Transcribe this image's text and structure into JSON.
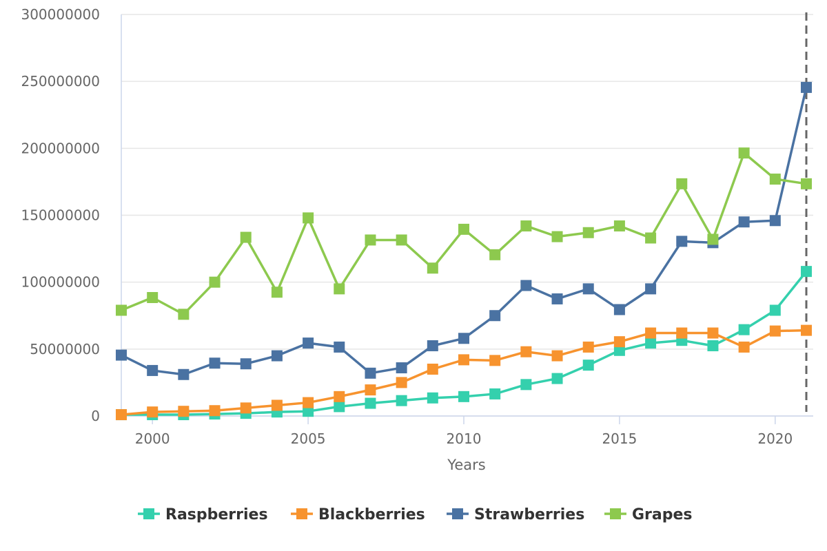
{
  "chart_data": {
    "type": "line",
    "title": "",
    "xlabel": "Years",
    "ylabel": "",
    "x": [
      1999,
      2000,
      2001,
      2002,
      2003,
      2004,
      2005,
      2006,
      2007,
      2008,
      2009,
      2010,
      2011,
      2012,
      2013,
      2014,
      2015,
      2016,
      2017,
      2018,
      2019,
      2020,
      2021
    ],
    "xlim": [
      1999,
      2021
    ],
    "ylim": [
      0,
      300000000
    ],
    "x_ticks": [
      2000,
      2005,
      2010,
      2015,
      2020
    ],
    "x_tick_labels": [
      "2000",
      "2005",
      "2010",
      "2015",
      "2020"
    ],
    "y_ticks": [
      0,
      50000000,
      100000000,
      150000000,
      200000000,
      250000000,
      300000000
    ],
    "y_tick_labels": [
      "0",
      "50000000",
      "100000000",
      "150000000",
      "200000000",
      "250000000",
      "300000000"
    ],
    "grid": true,
    "reference_line": {
      "x": 2021,
      "style": "dashed",
      "color": "#666666"
    },
    "legend_position": "bottom-center",
    "series": [
      {
        "name": "Raspberries",
        "color": "#34d0ad",
        "values": [
          1000000,
          1000000,
          1000000,
          1500000,
          2000000,
          3000000,
          3500000,
          7000000,
          9500000,
          11500000,
          13500000,
          14500000,
          16500000,
          23500000,
          28000000,
          38000000,
          49000000,
          54500000,
          56500000,
          52500000,
          64500000,
          79000000,
          108000000
        ]
      },
      {
        "name": "Blackberries",
        "color": "#f7932e",
        "values": [
          1000000,
          3000000,
          3500000,
          4000000,
          6000000,
          8000000,
          10000000,
          14500000,
          19500000,
          25000000,
          35000000,
          42000000,
          41500000,
          48000000,
          45000000,
          51500000,
          55500000,
          62000000,
          62000000,
          62000000,
          51500000,
          63500000,
          64000000
        ]
      },
      {
        "name": "Strawberries",
        "color": "#4a72a2",
        "values": [
          45500000,
          34000000,
          31000000,
          39500000,
          39000000,
          45000000,
          54500000,
          51500000,
          32000000,
          36000000,
          52500000,
          58000000,
          75000000,
          97500000,
          87500000,
          95000000,
          79500000,
          95000000,
          130500000,
          129500000,
          145000000,
          146000000,
          245500000
        ]
      },
      {
        "name": "Grapes",
        "color": "#8dc94e",
        "values": [
          79000000,
          88500000,
          76000000,
          100000000,
          133500000,
          92500000,
          148000000,
          95000000,
          131500000,
          131500000,
          110500000,
          139500000,
          120500000,
          142000000,
          134000000,
          137000000,
          142000000,
          133000000,
          173500000,
          132000000,
          196500000,
          177000000,
          173500000
        ]
      }
    ]
  }
}
